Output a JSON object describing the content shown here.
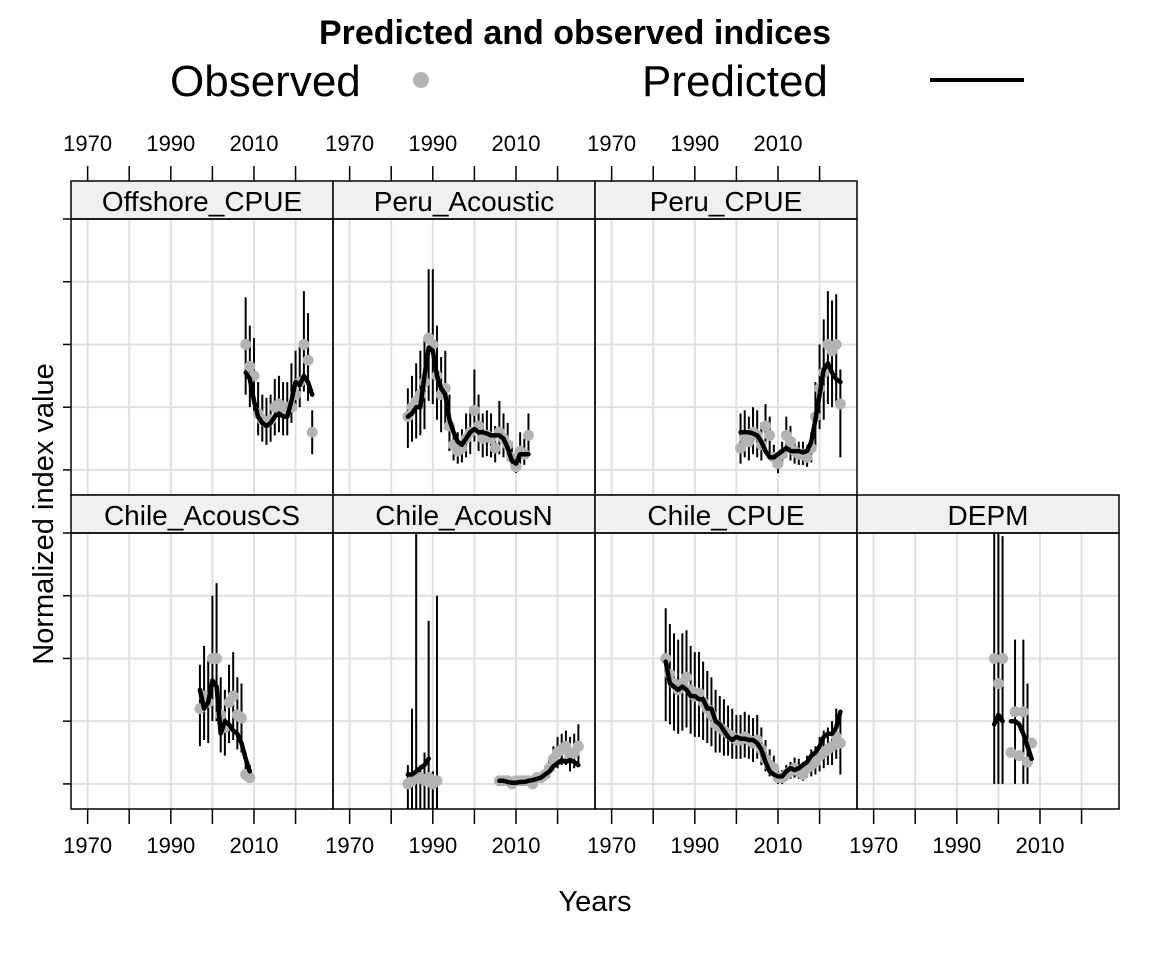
{
  "figure": {
    "title": "Predicted and observed indices",
    "xlabel": "Years",
    "ylabel": "Normalized index value"
  },
  "legend": {
    "observed_label": "Observed",
    "predicted_label": "Predicted",
    "observed_color": "#b3b3b3",
    "predicted_color": "#000000"
  },
  "colors": {
    "strip_bg": "#f0f0f0",
    "grid": "#e0e0e0",
    "observed": "#b3b3b3",
    "predicted": "#000000"
  },
  "chart_data": {
    "type": "line",
    "xlim": [
      1966,
      2029
    ],
    "ylim": [
      -0.4,
      4.0
    ],
    "x_ticks": [
      1970,
      1990,
      2010
    ],
    "x_minor_ticks": [
      1970,
      1980,
      1990,
      2000,
      2010,
      2020
    ],
    "y_gridlines": [
      0,
      1,
      2,
      3,
      4
    ],
    "panels": [
      {
        "name": "Offshore_CPUE",
        "x": [
          2008,
          2009,
          2010,
          2011,
          2012,
          2013,
          2014,
          2015,
          2016,
          2017,
          2018,
          2019,
          2020,
          2021,
          2022,
          2023,
          2024
        ],
        "observed": [
          2.0,
          1.65,
          1.5,
          0.9,
          0.8,
          0.75,
          0.8,
          1.0,
          1.05,
          0.95,
          1.0,
          1.0,
          1.2,
          1.4,
          2.0,
          1.75,
          0.6
        ],
        "predicted": [
          1.55,
          1.45,
          1.1,
          0.85,
          0.75,
          0.7,
          0.75,
          0.85,
          0.9,
          0.85,
          0.85,
          1.1,
          1.4,
          1.35,
          1.5,
          1.4,
          1.2
        ],
        "upper": [
          2.75,
          2.3,
          2.1,
          1.4,
          1.2,
          1.15,
          1.2,
          1.45,
          1.5,
          1.4,
          1.4,
          1.7,
          1.9,
          2.0,
          2.85,
          2.5,
          0.95
        ],
        "lower": [
          1.2,
          1.0,
          0.9,
          0.55,
          0.45,
          0.4,
          0.45,
          0.55,
          0.6,
          0.55,
          0.55,
          0.75,
          0.95,
          1.0,
          1.25,
          1.1,
          0.25
        ]
      },
      {
        "name": "Peru_Acoustic",
        "x": [
          1984,
          1985,
          1986,
          1987,
          1988,
          1989,
          1990,
          1991,
          1992,
          1993,
          1994,
          1995,
          1996,
          1997,
          1998,
          1999,
          2000,
          2001,
          2002,
          2003,
          2004,
          2005,
          2006,
          2007,
          2008,
          2009,
          2010,
          2011,
          2012,
          2013
        ],
        "observed": [
          0.85,
          1.0,
          1.1,
          1.2,
          1.4,
          2.1,
          2.0,
          1.5,
          1.2,
          1.3,
          0.7,
          0.4,
          0.3,
          0.35,
          0.5,
          0.6,
          0.95,
          0.7,
          0.5,
          0.55,
          0.5,
          0.35,
          0.6,
          0.5,
          0.4,
          0.2,
          0.05,
          0.3,
          0.25,
          0.55
        ],
        "predicted": [
          0.85,
          0.9,
          1.0,
          1.0,
          1.5,
          1.95,
          1.9,
          1.5,
          1.3,
          1.2,
          0.8,
          0.6,
          0.45,
          0.4,
          0.5,
          0.6,
          0.65,
          0.6,
          0.6,
          0.58,
          0.55,
          0.55,
          0.55,
          0.5,
          0.35,
          0.15,
          0.1,
          0.25,
          0.25,
          0.25
        ],
        "upper": [
          1.3,
          1.5,
          1.7,
          1.9,
          2.1,
          3.2,
          3.2,
          2.3,
          1.8,
          1.9,
          1.2,
          0.7,
          0.6,
          0.65,
          0.9,
          1.0,
          1.6,
          1.2,
          0.9,
          0.95,
          0.9,
          0.7,
          1.1,
          0.9,
          0.75,
          0.45,
          0.2,
          0.6,
          0.5,
          0.9
        ],
        "lower": [
          0.35,
          0.45,
          0.5,
          0.55,
          0.65,
          1.1,
          1.05,
          0.8,
          0.6,
          0.65,
          0.3,
          0.15,
          0.1,
          0.12,
          0.2,
          0.25,
          0.45,
          0.3,
          0.2,
          0.22,
          0.2,
          0.12,
          0.25,
          0.2,
          0.15,
          0.05,
          -0.05,
          0.1,
          0.08,
          0.25
        ]
      },
      {
        "name": "Peru_CPUE",
        "x": [
          2001,
          2002,
          2003,
          2004,
          2005,
          2006,
          2007,
          2008,
          2009,
          2010,
          2011,
          2012,
          2013,
          2014,
          2015,
          2016,
          2017,
          2018,
          2019,
          2020,
          2021,
          2022,
          2023,
          2024,
          2025
        ],
        "observed": [
          0.35,
          0.5,
          0.45,
          0.6,
          0.55,
          0.4,
          0.7,
          0.55,
          0.2,
          0.1,
          0.25,
          0.55,
          0.45,
          0.3,
          0.25,
          0.25,
          0.2,
          0.35,
          0.85,
          1.3,
          1.55,
          2.0,
          1.9,
          2.0,
          1.05
        ],
        "predicted": [
          0.6,
          0.6,
          0.6,
          0.58,
          0.55,
          0.45,
          0.3,
          0.2,
          0.2,
          0.25,
          0.3,
          0.35,
          0.3,
          0.3,
          0.3,
          0.28,
          0.3,
          0.45,
          0.8,
          1.2,
          1.6,
          1.7,
          1.55,
          1.45,
          1.4
        ],
        "upper": [
          0.9,
          0.95,
          0.85,
          1.0,
          0.95,
          0.75,
          1.05,
          0.85,
          0.4,
          0.25,
          0.45,
          0.85,
          0.7,
          0.5,
          0.45,
          0.45,
          0.4,
          0.6,
          1.4,
          2.0,
          2.4,
          2.85,
          2.7,
          2.8,
          1.6
        ],
        "lower": [
          0.1,
          0.2,
          0.15,
          0.25,
          0.2,
          0.15,
          0.3,
          0.2,
          0.05,
          -0.05,
          0.08,
          0.2,
          0.15,
          0.1,
          0.08,
          0.08,
          0.05,
          0.12,
          0.35,
          0.65,
          0.8,
          1.05,
          1.0,
          1.05,
          0.2
        ]
      },
      {
        "name": "Chile_AcousCS",
        "x": [
          1997,
          1998,
          1999,
          2000,
          2001,
          2002,
          2003,
          2004,
          2005,
          2006,
          2007,
          2008,
          2009
        ],
        "observed": [
          1.2,
          1.4,
          1.3,
          2.0,
          2.0,
          1.1,
          0.9,
          1.3,
          1.4,
          1.1,
          1.05,
          0.15,
          0.1
        ],
        "predicted": [
          1.5,
          1.2,
          1.3,
          1.65,
          1.55,
          0.8,
          1.0,
          0.95,
          0.85,
          0.8,
          0.65,
          0.4,
          0.2
        ],
        "upper": [
          1.9,
          2.2,
          2.0,
          3.0,
          3.2,
          1.7,
          1.5,
          1.9,
          2.1,
          1.7,
          1.6,
          0.5,
          0.3
        ],
        "lower": [
          0.6,
          0.7,
          0.65,
          1.0,
          1.0,
          0.5,
          0.45,
          0.65,
          0.7,
          0.55,
          0.5,
          0.05,
          0.02
        ]
      },
      {
        "name": "Chile_AcousN",
        "x": [
          1984,
          1985,
          1986,
          1987,
          1988,
          1989,
          1990,
          1991,
          2006,
          2007,
          2008,
          2009,
          2010,
          2011,
          2012,
          2013,
          2014,
          2015,
          2016,
          2017,
          2018,
          2019,
          2020,
          2021,
          2022,
          2023,
          2024,
          2025
        ],
        "observed": [
          0.0,
          0.05,
          0.1,
          0.1,
          0.05,
          0.1,
          0.0,
          0.05,
          0.05,
          0.05,
          0.05,
          0.0,
          0.05,
          0.05,
          0.05,
          0.05,
          0.0,
          0.1,
          0.1,
          0.15,
          0.25,
          0.4,
          0.5,
          0.55,
          0.6,
          0.45,
          0.5,
          0.6
        ],
        "predicted": [
          0.15,
          0.15,
          0.2,
          0.25,
          0.3,
          0.4,
          null,
          null,
          0.05,
          0.05,
          0.03,
          0.02,
          0.02,
          0.03,
          0.03,
          0.05,
          0.06,
          0.08,
          0.1,
          0.15,
          0.2,
          0.28,
          0.33,
          0.38,
          0.35,
          0.38,
          0.35,
          0.3
        ],
        "upper": [
          0.3,
          1.2,
          4.0,
          0.3,
          0.5,
          2.6,
          0.2,
          3.0,
          0.1,
          0.12,
          0.1,
          0.08,
          0.1,
          0.12,
          0.1,
          0.1,
          0.08,
          0.15,
          0.18,
          0.25,
          0.4,
          0.6,
          0.75,
          0.8,
          0.85,
          0.75,
          0.8,
          0.95
        ],
        "lower": [
          -0.4,
          -0.4,
          -0.4,
          -0.4,
          -0.4,
          -0.4,
          -0.4,
          -0.4,
          0.0,
          0.0,
          0.0,
          -0.05,
          0.0,
          0.0,
          0.0,
          0.0,
          -0.02,
          0.02,
          0.02,
          0.05,
          0.1,
          0.2,
          0.25,
          0.3,
          0.3,
          0.2,
          0.25,
          0.3
        ]
      },
      {
        "name": "Chile_CPUE",
        "x": [
          1983,
          1984,
          1985,
          1986,
          1987,
          1988,
          1989,
          1990,
          1991,
          1992,
          1993,
          1994,
          1995,
          1996,
          1997,
          1998,
          1999,
          2000,
          2001,
          2002,
          2003,
          2004,
          2005,
          2006,
          2007,
          2008,
          2009,
          2010,
          2011,
          2012,
          2013,
          2014,
          2015,
          2016,
          2017,
          2018,
          2019,
          2020,
          2021,
          2022,
          2023,
          2024,
          2025
        ],
        "observed": [
          2.0,
          1.75,
          1.6,
          1.5,
          1.6,
          1.7,
          1.5,
          1.4,
          1.45,
          1.3,
          1.2,
          1.1,
          0.95,
          0.9,
          0.85,
          0.8,
          0.75,
          0.7,
          0.7,
          0.75,
          0.7,
          0.65,
          0.7,
          0.55,
          0.4,
          0.3,
          0.25,
          0.1,
          0.1,
          0.15,
          0.2,
          0.25,
          0.2,
          0.15,
          0.25,
          0.3,
          0.35,
          0.45,
          0.5,
          0.55,
          0.6,
          0.75,
          0.65
        ],
        "predicted": [
          1.95,
          1.6,
          1.55,
          1.5,
          1.55,
          1.5,
          1.4,
          1.4,
          1.35,
          1.35,
          1.2,
          1.2,
          1.0,
          0.95,
          0.85,
          0.75,
          0.7,
          0.75,
          0.72,
          0.72,
          0.7,
          0.7,
          0.65,
          0.55,
          0.35,
          0.2,
          0.15,
          0.12,
          0.12,
          0.2,
          0.25,
          0.22,
          0.25,
          0.3,
          0.35,
          0.45,
          0.5,
          0.6,
          0.75,
          0.8,
          0.8,
          0.9,
          1.15
        ],
        "upper": [
          2.8,
          2.55,
          2.4,
          2.3,
          2.4,
          2.45,
          2.2,
          2.1,
          2.1,
          1.95,
          1.8,
          1.7,
          1.5,
          1.4,
          1.35,
          1.25,
          1.2,
          1.1,
          1.1,
          1.15,
          1.1,
          1.05,
          1.1,
          0.9,
          0.7,
          0.55,
          0.45,
          0.25,
          0.22,
          0.3,
          0.35,
          0.42,
          0.4,
          0.35,
          0.45,
          0.55,
          0.6,
          0.75,
          0.85,
          0.9,
          1.0,
          1.2,
          1.15
        ],
        "lower": [
          1.0,
          0.95,
          0.85,
          0.8,
          0.85,
          0.9,
          0.8,
          0.75,
          0.75,
          0.7,
          0.65,
          0.6,
          0.5,
          0.5,
          0.45,
          0.45,
          0.4,
          0.4,
          0.4,
          0.42,
          0.4,
          0.35,
          0.4,
          0.3,
          0.2,
          0.12,
          0.1,
          0.0,
          0.0,
          0.05,
          0.08,
          0.1,
          0.08,
          0.05,
          0.1,
          0.12,
          0.15,
          0.2,
          0.25,
          0.3,
          0.3,
          0.4,
          0.15
        ]
      },
      {
        "name": "DEPM",
        "x": [
          1999,
          2000,
          2001,
          2002,
          2003,
          2004,
          2005,
          2006,
          2007,
          2008
        ],
        "observed": [
          2.0,
          1.6,
          2.0,
          null,
          0.5,
          1.15,
          0.45,
          1.15,
          0.35,
          0.65
        ],
        "predicted": [
          0.95,
          1.1,
          1.0,
          null,
          1.0,
          1.0,
          0.95,
          0.8,
          0.6,
          0.4
        ],
        "upper": [
          4.0,
          4.0,
          3.95,
          null,
          null,
          2.3,
          null,
          2.3,
          1.6,
          null
        ],
        "lower": [
          0.0,
          0.0,
          0.0,
          null,
          null,
          0.0,
          null,
          0.0,
          0.0,
          null
        ]
      }
    ]
  }
}
